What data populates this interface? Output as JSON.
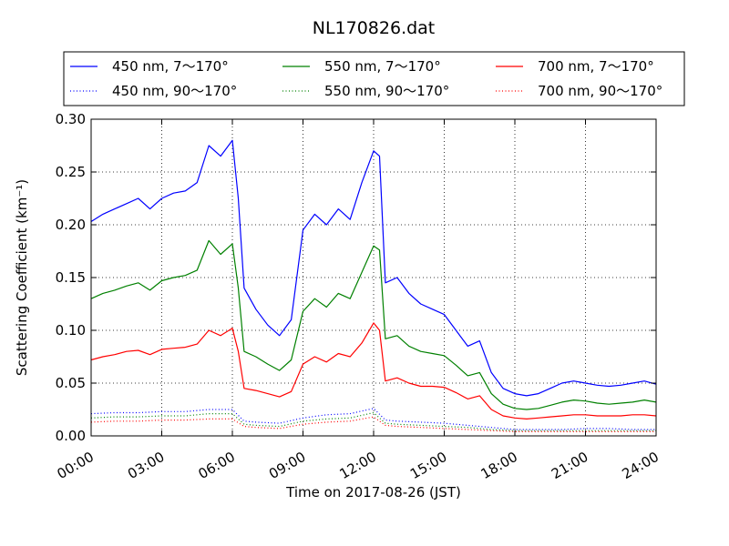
{
  "chart_data": {
    "type": "line",
    "title": "NL170826.dat",
    "xlabel": "Time on 2017-08-26 (JST)",
    "ylabel": "Scattering Coefficient (km⁻¹)",
    "xlim": [
      "00:00",
      "24:00"
    ],
    "ylim": [
      0.0,
      0.3
    ],
    "x_ticks": [
      "00:00",
      "03:00",
      "06:00",
      "09:00",
      "12:00",
      "15:00",
      "18:00",
      "21:00",
      "24:00"
    ],
    "y_ticks": [
      "0.00",
      "0.05",
      "0.10",
      "0.15",
      "0.20",
      "0.25",
      "0.30"
    ],
    "grid": true,
    "legend_position": "top",
    "series": [
      {
        "name": "450 nm, 7～170°",
        "color": "#0000ff",
        "style": "solid",
        "x": [
          "00:00",
          "00:30",
          "01:00",
          "01:30",
          "02:00",
          "02:30",
          "03:00",
          "03:30",
          "04:00",
          "04:30",
          "05:00",
          "05:30",
          "06:00",
          "06:15",
          "06:30",
          "07:00",
          "07:30",
          "08:00",
          "08:30",
          "09:00",
          "09:30",
          "10:00",
          "10:30",
          "11:00",
          "11:30",
          "12:00",
          "12:15",
          "12:30",
          "13:00",
          "13:30",
          "14:00",
          "14:30",
          "15:00",
          "15:30",
          "16:00",
          "16:30",
          "17:00",
          "17:30",
          "18:00",
          "18:30",
          "19:00",
          "19:30",
          "20:00",
          "20:30",
          "21:00",
          "21:30",
          "22:00",
          "22:30",
          "23:00",
          "23:30",
          "24:00"
        ],
        "y": [
          0.203,
          0.21,
          0.215,
          0.22,
          0.225,
          0.215,
          0.225,
          0.23,
          0.232,
          0.24,
          0.275,
          0.265,
          0.28,
          0.225,
          0.14,
          0.12,
          0.105,
          0.095,
          0.11,
          0.195,
          0.21,
          0.2,
          0.215,
          0.205,
          0.24,
          0.27,
          0.265,
          0.145,
          0.15,
          0.135,
          0.125,
          0.12,
          0.115,
          0.1,
          0.085,
          0.09,
          0.06,
          0.045,
          0.04,
          0.038,
          0.04,
          0.045,
          0.05,
          0.052,
          0.05,
          0.048,
          0.047,
          0.048,
          0.05,
          0.052,
          0.049
        ]
      },
      {
        "name": "550 nm, 7～170°",
        "color": "#008000",
        "style": "solid",
        "x": [
          "00:00",
          "00:30",
          "01:00",
          "01:30",
          "02:00",
          "02:30",
          "03:00",
          "03:30",
          "04:00",
          "04:30",
          "05:00",
          "05:30",
          "06:00",
          "06:15",
          "06:30",
          "07:00",
          "07:30",
          "08:00",
          "08:30",
          "09:00",
          "09:30",
          "10:00",
          "10:30",
          "11:00",
          "11:30",
          "12:00",
          "12:15",
          "12:30",
          "13:00",
          "13:30",
          "14:00",
          "14:30",
          "15:00",
          "15:30",
          "16:00",
          "16:30",
          "17:00",
          "17:30",
          "18:00",
          "18:30",
          "19:00",
          "19:30",
          "20:00",
          "20:30",
          "21:00",
          "21:30",
          "22:00",
          "22:30",
          "23:00",
          "23:30",
          "24:00"
        ],
        "y": [
          0.13,
          0.135,
          0.138,
          0.142,
          0.145,
          0.138,
          0.147,
          0.15,
          0.152,
          0.157,
          0.185,
          0.172,
          0.182,
          0.14,
          0.08,
          0.075,
          0.068,
          0.062,
          0.072,
          0.118,
          0.13,
          0.122,
          0.135,
          0.13,
          0.155,
          0.18,
          0.176,
          0.092,
          0.095,
          0.085,
          0.08,
          0.078,
          0.076,
          0.067,
          0.057,
          0.06,
          0.04,
          0.03,
          0.026,
          0.025,
          0.026,
          0.029,
          0.032,
          0.034,
          0.033,
          0.031,
          0.03,
          0.031,
          0.032,
          0.034,
          0.032
        ]
      },
      {
        "name": "700 nm, 7～170°",
        "color": "#ff0000",
        "style": "solid",
        "x": [
          "00:00",
          "00:30",
          "01:00",
          "01:30",
          "02:00",
          "02:30",
          "03:00",
          "03:30",
          "04:00",
          "04:30",
          "05:00",
          "05:30",
          "06:00",
          "06:15",
          "06:30",
          "07:00",
          "07:30",
          "08:00",
          "08:30",
          "09:00",
          "09:30",
          "10:00",
          "10:30",
          "11:00",
          "11:30",
          "12:00",
          "12:15",
          "12:30",
          "13:00",
          "13:30",
          "14:00",
          "14:30",
          "15:00",
          "15:30",
          "16:00",
          "16:30",
          "17:00",
          "17:30",
          "18:00",
          "18:30",
          "19:00",
          "19:30",
          "20:00",
          "20:30",
          "21:00",
          "21:30",
          "22:00",
          "22:30",
          "23:00",
          "23:30",
          "24:00"
        ],
        "y": [
          0.072,
          0.075,
          0.077,
          0.08,
          0.081,
          0.077,
          0.082,
          0.083,
          0.084,
          0.087,
          0.1,
          0.095,
          0.102,
          0.08,
          0.045,
          0.043,
          0.04,
          0.037,
          0.042,
          0.068,
          0.075,
          0.07,
          0.078,
          0.075,
          0.088,
          0.107,
          0.1,
          0.052,
          0.055,
          0.05,
          0.047,
          0.047,
          0.046,
          0.041,
          0.035,
          0.038,
          0.025,
          0.019,
          0.017,
          0.016,
          0.017,
          0.018,
          0.019,
          0.02,
          0.02,
          0.019,
          0.019,
          0.019,
          0.02,
          0.02,
          0.019
        ]
      },
      {
        "name": "450 nm, 90～170°",
        "color": "#0000ff",
        "style": "dotted",
        "x": [
          "00:00",
          "01:00",
          "02:00",
          "03:00",
          "04:00",
          "05:00",
          "06:00",
          "06:30",
          "07:00",
          "08:00",
          "09:00",
          "10:00",
          "11:00",
          "12:00",
          "12:30",
          "13:00",
          "14:00",
          "15:00",
          "16:00",
          "17:00",
          "18:00",
          "19:00",
          "20:00",
          "21:00",
          "22:00",
          "23:00",
          "24:00"
        ],
        "y": [
          0.021,
          0.022,
          0.022,
          0.023,
          0.023,
          0.025,
          0.025,
          0.014,
          0.013,
          0.012,
          0.017,
          0.02,
          0.021,
          0.026,
          0.015,
          0.014,
          0.013,
          0.012,
          0.01,
          0.008,
          0.006,
          0.006,
          0.006,
          0.007,
          0.007,
          0.006,
          0.006
        ]
      },
      {
        "name": "550 nm, 90～170°",
        "color": "#008000",
        "style": "dotted",
        "x": [
          "00:00",
          "01:00",
          "02:00",
          "03:00",
          "04:00",
          "05:00",
          "06:00",
          "06:30",
          "07:00",
          "08:00",
          "09:00",
          "10:00",
          "11:00",
          "12:00",
          "12:30",
          "13:00",
          "14:00",
          "15:00",
          "16:00",
          "17:00",
          "18:00",
          "19:00",
          "20:00",
          "21:00",
          "22:00",
          "23:00",
          "24:00"
        ],
        "y": [
          0.017,
          0.018,
          0.018,
          0.019,
          0.019,
          0.021,
          0.021,
          0.011,
          0.01,
          0.009,
          0.014,
          0.016,
          0.017,
          0.022,
          0.012,
          0.011,
          0.01,
          0.009,
          0.008,
          0.006,
          0.005,
          0.005,
          0.005,
          0.005,
          0.005,
          0.005,
          0.005
        ]
      },
      {
        "name": "700 nm, 90～170°",
        "color": "#ff0000",
        "style": "dotted",
        "x": [
          "00:00",
          "01:00",
          "02:00",
          "03:00",
          "04:00",
          "05:00",
          "06:00",
          "06:30",
          "07:00",
          "08:00",
          "09:00",
          "10:00",
          "11:00",
          "12:00",
          "12:30",
          "13:00",
          "14:00",
          "15:00",
          "16:00",
          "17:00",
          "18:00",
          "19:00",
          "20:00",
          "21:00",
          "22:00",
          "23:00",
          "24:00"
        ],
        "y": [
          0.013,
          0.014,
          0.014,
          0.015,
          0.015,
          0.016,
          0.016,
          0.009,
          0.008,
          0.007,
          0.011,
          0.013,
          0.014,
          0.018,
          0.01,
          0.009,
          0.008,
          0.007,
          0.006,
          0.005,
          0.004,
          0.004,
          0.004,
          0.004,
          0.004,
          0.004,
          0.004
        ]
      }
    ]
  }
}
